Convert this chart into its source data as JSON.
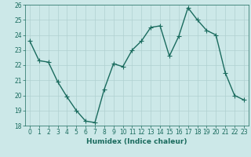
{
  "x": [
    0,
    1,
    2,
    3,
    4,
    5,
    6,
    7,
    8,
    9,
    10,
    11,
    12,
    13,
    14,
    15,
    16,
    17,
    18,
    19,
    20,
    21,
    22,
    23
  ],
  "y": [
    23.6,
    22.3,
    22.2,
    20.9,
    19.9,
    19.0,
    18.3,
    18.2,
    20.4,
    22.1,
    21.9,
    23.0,
    23.6,
    24.5,
    24.6,
    22.6,
    23.9,
    25.8,
    25.0,
    24.3,
    24.0,
    21.5,
    20.0,
    19.7
  ],
  "line_color": "#1a6b5e",
  "marker": "+",
  "markersize": 4,
  "linewidth": 1.0,
  "bg_color": "#cce8e8",
  "grid_color": "#b0d0d0",
  "xlabel": "Humidex (Indice chaleur)",
  "ylim": [
    18,
    26
  ],
  "xlim": [
    -0.5,
    23.5
  ],
  "yticks": [
    18,
    19,
    20,
    21,
    22,
    23,
    24,
    25,
    26
  ],
  "xticks": [
    0,
    1,
    2,
    3,
    4,
    5,
    6,
    7,
    8,
    9,
    10,
    11,
    12,
    13,
    14,
    15,
    16,
    17,
    18,
    19,
    20,
    21,
    22,
    23
  ],
  "tick_color": "#1a6b5e",
  "tick_labelsize": 5.5,
  "xlabel_fontsize": 6.5,
  "xlabel_color": "#1a6b5e",
  "spine_color": "#1a6b5e"
}
